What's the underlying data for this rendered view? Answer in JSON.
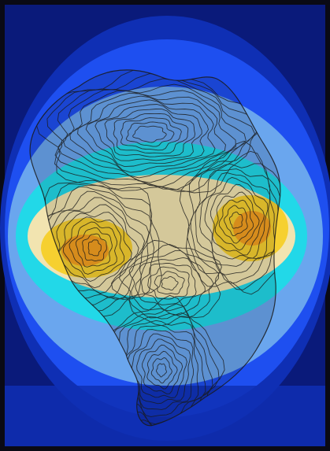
{
  "palette": {
    "frame": "#0a0a14",
    "deep_navy": "#0a1a7a",
    "navy": "#0f2fb4",
    "blue": "#1e4ff0",
    "sky": "#6aa6ee",
    "cyan": "#22d8e8",
    "cream": "#f2e4b0",
    "yellow": "#f6d030",
    "orange": "#f4a020",
    "contour": "#1a1a1a"
  },
  "layers": [
    "background-field",
    "contour-map"
  ],
  "levels": [
    "deep-navy",
    "navy",
    "blue",
    "sky",
    "cyan",
    "cream",
    "yellow",
    "orange"
  ]
}
